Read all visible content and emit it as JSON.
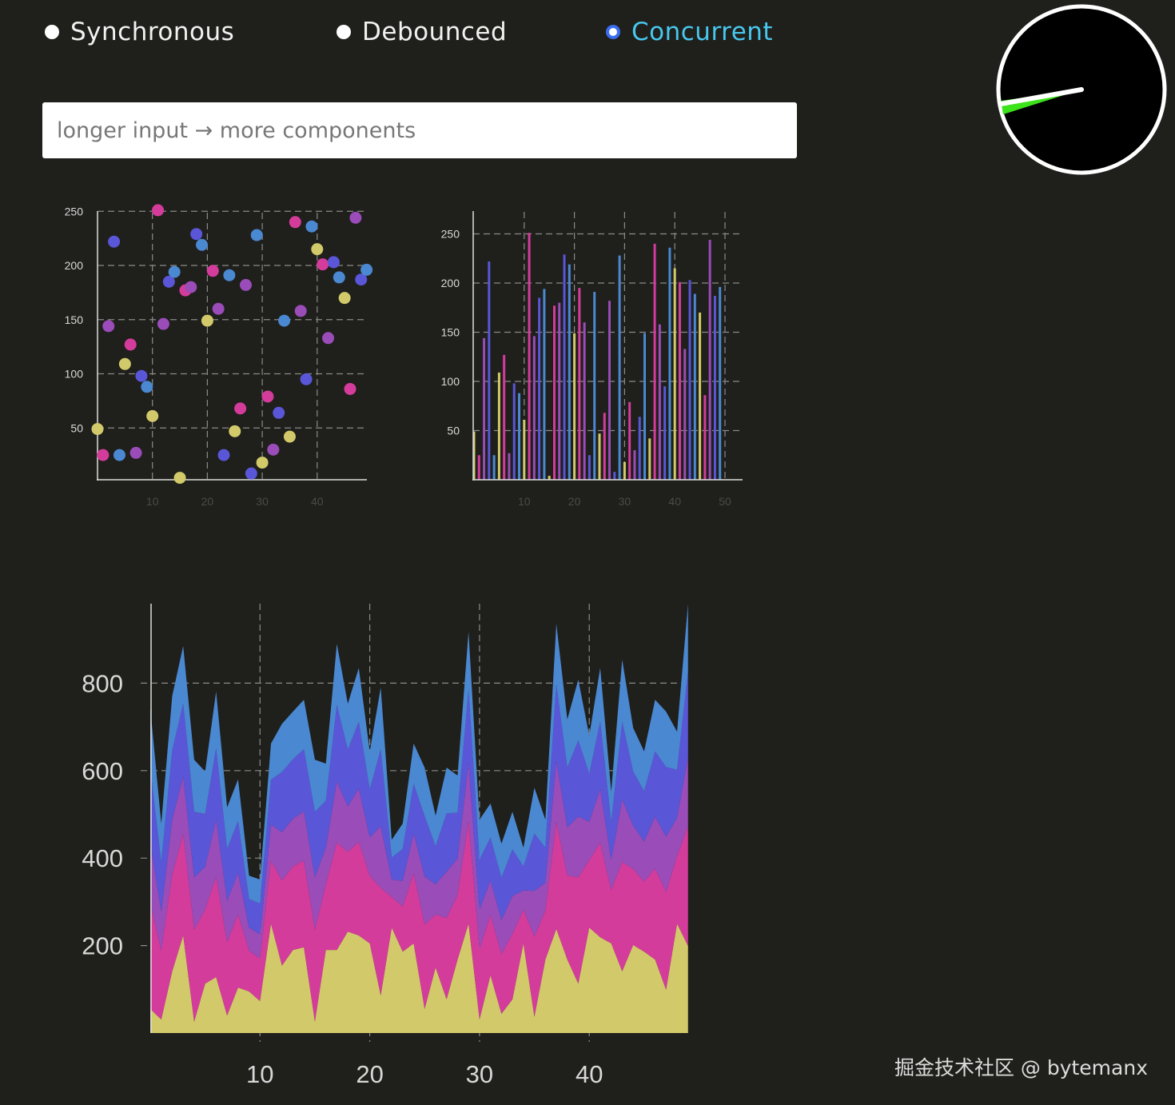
{
  "modes": [
    {
      "label": "Synchronous",
      "selected": false
    },
    {
      "label": "Debounced",
      "selected": false
    },
    {
      "label": "Concurrent",
      "selected": true
    }
  ],
  "search": {
    "placeholder": "longer input → more components",
    "value": ""
  },
  "colors": {
    "background": "#1f1f1b",
    "series": [
      "#d2ca6a",
      "#d43c9c",
      "#9a4cb8",
      "#5a56d8",
      "#4a88d2"
    ],
    "selected_radio": "#3b6df0",
    "selected_label": "#48c8ee",
    "clock_sweep": "#3ce21a"
  },
  "clock": {
    "icon": "clock-gauge",
    "hand_angle_deg": 260
  },
  "chart_data": [
    {
      "type": "scatter",
      "x_ticks": [
        "10",
        "20",
        "30",
        "40"
      ],
      "y_ticks": [
        "50",
        "100",
        "150",
        "200",
        "250"
      ],
      "xlim": [
        0,
        49
      ],
      "ylim": [
        0,
        250
      ],
      "grid": true,
      "x": [
        0,
        1,
        2,
        3,
        4,
        5,
        6,
        7,
        8,
        9,
        10,
        11,
        12,
        13,
        14,
        15,
        16,
        17,
        18,
        19,
        20,
        21,
        22,
        23,
        24,
        25,
        26,
        27,
        28,
        29,
        30,
        31,
        32,
        33,
        34,
        35,
        36,
        37,
        38,
        39,
        40,
        41,
        42,
        43,
        44,
        45,
        46,
        47,
        48,
        49
      ],
      "values": [
        49,
        25,
        144,
        222,
        25,
        109,
        127,
        27,
        98,
        88,
        61,
        251,
        146,
        185,
        194,
        4,
        177,
        180,
        229,
        219,
        149,
        195,
        160,
        25,
        191,
        47,
        68,
        182,
        8,
        228,
        18,
        79,
        30,
        64,
        149,
        42,
        240,
        158,
        95,
        236,
        215,
        201,
        133,
        203,
        189,
        170,
        86,
        244,
        187,
        196
      ]
    },
    {
      "type": "bar",
      "x_ticks": [
        "10",
        "20",
        "30",
        "40",
        "50"
      ],
      "y_ticks": [
        "50",
        "100",
        "150",
        "200",
        "250"
      ],
      "xlim": [
        0,
        50
      ],
      "ylim": [
        0,
        250
      ],
      "grid": true,
      "values": [
        49,
        25,
        144,
        222,
        25,
        109,
        127,
        27,
        98,
        88,
        61,
        251,
        146,
        185,
        194,
        4,
        177,
        180,
        229,
        219,
        149,
        195,
        160,
        25,
        191,
        47,
        68,
        182,
        8,
        228,
        18,
        79,
        30,
        64,
        149,
        42,
        240,
        158,
        95,
        236,
        215,
        201,
        133,
        203,
        189,
        170,
        86,
        244,
        187,
        196
      ]
    },
    {
      "type": "area",
      "stacked": true,
      "x_ticks": [
        "10",
        "20",
        "30",
        "40"
      ],
      "y_ticks": [
        "200",
        "400",
        "600",
        "800"
      ],
      "xlim": [
        0,
        49
      ],
      "ylim": [
        0,
        980
      ],
      "grid": true,
      "series": [
        {
          "values": [
            55,
            31,
            141,
            223,
            26,
            113,
            128,
            40,
            104,
            95,
            73,
            250,
            154,
            190,
            196,
            26,
            190,
            190,
            232,
            223,
            205,
            86,
            241,
            186,
            205,
            55,
            150,
            77,
            168,
            250,
            31,
            132,
            44,
            77,
            205,
            37,
            168,
            238,
            168,
            113,
            241,
            219,
            205,
            141,
            201,
            186,
            168,
            99,
            250,
            199
          ]
        },
        {
          "values": [
            241,
            157,
            221,
            232,
            210,
            170,
            229,
            167,
            167,
            93,
            97,
            144,
            194,
            191,
            198,
            210,
            149,
            245,
            182,
            214,
            154,
            246,
            70,
            103,
            160,
            193,
            121,
            186,
            147,
            234,
            160,
            138,
            136,
            150,
            77,
            183,
            112,
            244,
            192,
            243,
            154,
            216,
            121,
            250,
            174,
            160,
            208,
            223,
            154,
            274
          ]
        },
        {
          "values": [
            138,
            90,
            126,
            132,
            120,
            97,
            131,
            95,
            95,
            53,
            56,
            82,
            111,
            109,
            113,
            120,
            85,
            140,
            104,
            122,
            88,
            141,
            40,
            59,
            91,
            110,
            69,
            106,
            84,
            134,
            91,
            79,
            78,
            86,
            44,
            105,
            64,
            140,
            110,
            139,
            88,
            123,
            69,
            143,
            99,
            92,
            119,
            127,
            88,
            157
          ]
        },
        {
          "values": [
            172,
            112,
            158,
            166,
            150,
            121,
            163,
            119,
            119,
            66,
            70,
            103,
            138,
            136,
            142,
            150,
            107,
            175,
            130,
            153,
            110,
            176,
            50,
            73,
            114,
            138,
            87,
            133,
            105,
            167,
            114,
            98,
            97,
            107,
            55,
            131,
            80,
            175,
            137,
            174,
            110,
            154,
            87,
            178,
            124,
            115,
            149,
            159,
            110,
            196
          ]
        },
        {
          "values": [
            138,
            89,
            125,
            132,
            119,
            97,
            130,
            95,
            95,
            53,
            55,
            83,
            110,
            109,
            113,
            119,
            85,
            140,
            105,
            123,
            87,
            141,
            41,
            58,
            92,
            111,
            70,
            105,
            85,
            133,
            92,
            78,
            78,
            86,
            43,
            105,
            64,
            139,
            110,
            139,
            87,
            123,
            70,
            142,
            100,
            91,
            118,
            127,
            87,
            156
          ]
        }
      ]
    }
  ],
  "watermark": "掘金技术社区 @ bytemanx"
}
